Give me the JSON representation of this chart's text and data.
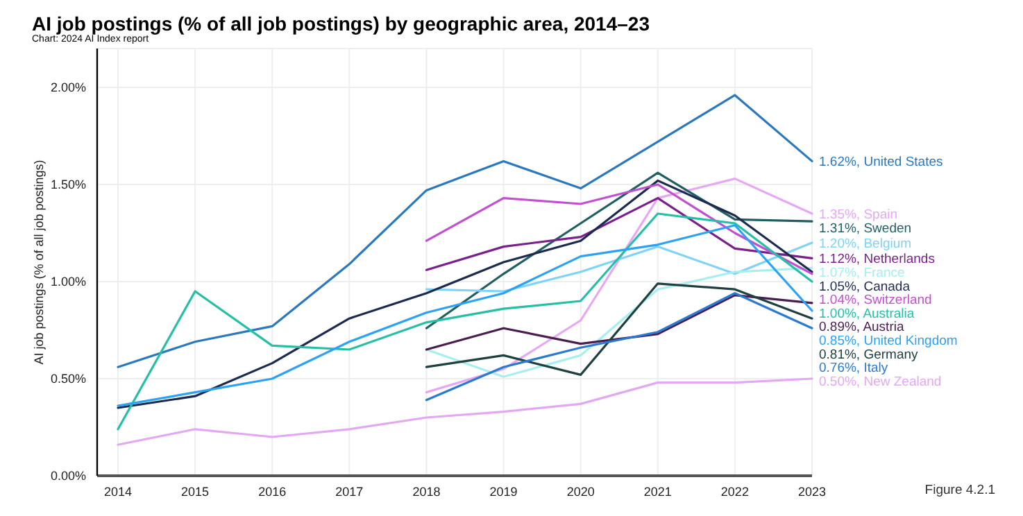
{
  "chart_data": {
    "type": "line",
    "title": "AI job postings (% of all job postings) by geographic area, 2014–23",
    "subtitle": "Chart: 2024 AI Index report",
    "ylabel": "AI job postings (% of all job postings)",
    "annotations": [
      "Figure 4.2.1"
    ],
    "categories": [
      "2014",
      "2015",
      "2016",
      "2017",
      "2018",
      "2019",
      "2020",
      "2021",
      "2022",
      "2023"
    ],
    "ylim": [
      0,
      2.2
    ],
    "yticks": [
      {
        "value": 0,
        "label": "0.00%"
      },
      {
        "value": 0.5,
        "label": "0.50%"
      },
      {
        "value": 1,
        "label": "1.00%"
      },
      {
        "value": 1.5,
        "label": "1.50%"
      },
      {
        "value": 2,
        "label": "2.00%"
      }
    ],
    "grid": true,
    "marker": "none",
    "line_style": "solid",
    "series": [
      {
        "name": "United States",
        "color": "#2a78be",
        "values": [
          0.56,
          0.69,
          0.77,
          1.09,
          1.47,
          1.62,
          1.48,
          1.72,
          1.96,
          1.62
        ],
        "value_labels": [
          null,
          null,
          null,
          null,
          null,
          null,
          null,
          null,
          null,
          "1.62%,"
        ]
      },
      {
        "name": "Spain",
        "color": "#e6a8f5",
        "values": [
          null,
          null,
          null,
          null,
          0.43,
          0.55,
          0.8,
          1.43,
          1.53,
          1.35
        ],
        "value_labels": [
          null,
          null,
          null,
          null,
          null,
          null,
          null,
          null,
          null,
          "1.35%,"
        ]
      },
      {
        "name": "Sweden",
        "color": "#1f5f62",
        "values": [
          null,
          null,
          null,
          null,
          0.76,
          1.04,
          1.3,
          1.56,
          1.32,
          1.31
        ],
        "value_labels": [
          null,
          null,
          null,
          null,
          null,
          null,
          null,
          null,
          null,
          "1.31%,"
        ]
      },
      {
        "name": "Belgium",
        "color": "#7fd3f7",
        "values": [
          null,
          null,
          null,
          null,
          0.96,
          0.95,
          1.05,
          1.18,
          1.04,
          1.2
        ],
        "value_labels": [
          null,
          null,
          null,
          null,
          null,
          null,
          null,
          null,
          null,
          "1.20%,"
        ]
      },
      {
        "name": "Netherlands",
        "color": "#7b1f8c",
        "values": [
          null,
          null,
          null,
          null,
          1.06,
          1.18,
          1.23,
          1.43,
          1.17,
          1.12
        ],
        "value_labels": [
          null,
          null,
          null,
          null,
          null,
          null,
          null,
          null,
          null,
          "1.12%,"
        ]
      },
      {
        "name": "France",
        "color": "#a6eef0",
        "values": [
          null,
          null,
          null,
          null,
          0.65,
          0.51,
          0.62,
          0.96,
          1.05,
          1.07
        ],
        "value_labels": [
          null,
          null,
          null,
          null,
          null,
          null,
          null,
          null,
          null,
          "1.07%,"
        ]
      },
      {
        "name": "Canada",
        "color": "#1b2a4e",
        "values": [
          0.35,
          0.41,
          0.58,
          0.81,
          0.94,
          1.1,
          1.21,
          1.52,
          1.34,
          1.05
        ],
        "value_labels": [
          null,
          null,
          null,
          null,
          null,
          null,
          null,
          null,
          null,
          "1.05%,"
        ]
      },
      {
        "name": "Switzerland",
        "color": "#c24fd2",
        "values": [
          null,
          null,
          null,
          null,
          1.21,
          1.43,
          1.4,
          1.5,
          1.25,
          1.04
        ],
        "value_labels": [
          null,
          null,
          null,
          null,
          null,
          null,
          null,
          null,
          null,
          "1.04%,"
        ]
      },
      {
        "name": "Australia",
        "color": "#25bfa6",
        "values": [
          0.24,
          0.95,
          0.67,
          0.65,
          0.79,
          0.86,
          0.9,
          1.35,
          1.3,
          1.0
        ],
        "value_labels": [
          null,
          null,
          null,
          null,
          null,
          null,
          null,
          null,
          null,
          "1.00%,"
        ]
      },
      {
        "name": "Austria",
        "color": "#4a1d50",
        "values": [
          null,
          null,
          null,
          null,
          0.65,
          0.76,
          0.68,
          0.73,
          0.93,
          0.89
        ],
        "value_labels": [
          null,
          null,
          null,
          null,
          null,
          null,
          null,
          null,
          null,
          "0.89%,"
        ]
      },
      {
        "name": "United Kingdom",
        "color": "#2ba2f5",
        "values": [
          0.36,
          0.43,
          0.5,
          0.69,
          0.84,
          0.94,
          1.13,
          1.19,
          1.29,
          0.85
        ],
        "value_labels": [
          null,
          null,
          null,
          null,
          null,
          null,
          null,
          null,
          null,
          "0.85%,"
        ]
      },
      {
        "name": "Germany",
        "color": "#1f4040",
        "values": [
          null,
          null,
          null,
          null,
          0.56,
          0.62,
          0.52,
          0.99,
          0.96,
          0.81
        ],
        "value_labels": [
          null,
          null,
          null,
          null,
          null,
          null,
          null,
          null,
          null,
          "0.81%,"
        ]
      },
      {
        "name": "Italy",
        "color": "#2a7bd0",
        "values": [
          null,
          null,
          null,
          null,
          0.39,
          0.56,
          0.66,
          0.74,
          0.94,
          0.76
        ],
        "value_labels": [
          null,
          null,
          null,
          null,
          null,
          null,
          null,
          null,
          null,
          "0.76%,"
        ]
      },
      {
        "name": "New Zealand",
        "color": "#e2a9f2",
        "values": [
          0.16,
          0.24,
          0.2,
          0.24,
          0.3,
          0.33,
          0.37,
          0.48,
          0.48,
          0.5
        ],
        "value_labels": [
          null,
          null,
          null,
          null,
          null,
          null,
          null,
          null,
          null,
          "0.50%,"
        ]
      }
    ]
  }
}
